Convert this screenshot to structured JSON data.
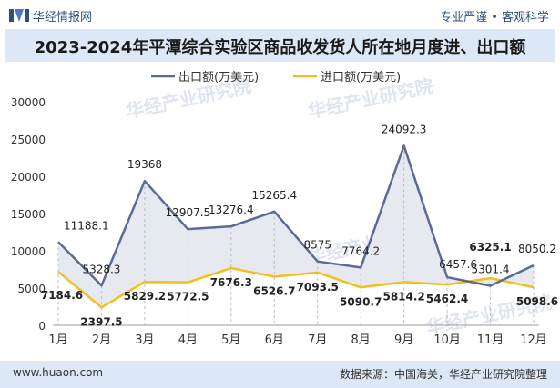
{
  "header": {
    "brand": "华经情报网",
    "tagline": "专业严谨 • 客观科学"
  },
  "footer": {
    "url": "www.huaon.com",
    "source": "数据来源：中国海关，华经产业研究院整理"
  },
  "watermark": "华经产业研究院",
  "colors": {
    "export": "#5b6b94",
    "import": "#f5bf1b",
    "fill": "#e6e9ef",
    "titlebar": "#dde8f6"
  },
  "chart_data": {
    "type": "line",
    "title": "2023-2024年平潭综合实验区商品收发货人所在地月度进、出口额",
    "categories": [
      "1月",
      "2月",
      "3月",
      "4月",
      "5月",
      "6月",
      "7月",
      "8月",
      "9月",
      "10月",
      "11月",
      "12月"
    ],
    "series": [
      {
        "name": "出口额(万美元)",
        "values": [
          11188.1,
          5328.3,
          19368,
          12907.5,
          13276.4,
          15265.4,
          8575,
          7764.2,
          24092.3,
          6457.6,
          5301.4,
          8050.2
        ],
        "labels": [
          "11188.1",
          "5328.3",
          "19368",
          "12907.5",
          "13276.4",
          "15265.4",
          "8575",
          "7764.2",
          "24092.3",
          "6457.6",
          "5301.4",
          "8050.2"
        ]
      },
      {
        "name": "进口额(万美元)",
        "values": [
          7184.6,
          2397.5,
          5829.2,
          5772.5,
          7676.3,
          6526.7,
          7093.5,
          5090.7,
          5814.2,
          5462.4,
          6325.1,
          5098.6
        ],
        "labels": [
          "7184.6",
          "2397.5",
          "5829.2",
          "5772.5",
          "7676.3",
          "6526.7",
          "7093.5",
          "5090.7",
          "5814.2",
          "5462.4",
          "6325.1",
          "5098.6"
        ]
      }
    ],
    "yticks": [
      "0",
      "5000",
      "10000",
      "15000",
      "20000",
      "25000",
      "30000"
    ],
    "ylim": [
      0,
      30000
    ],
    "legend": "top-center"
  }
}
